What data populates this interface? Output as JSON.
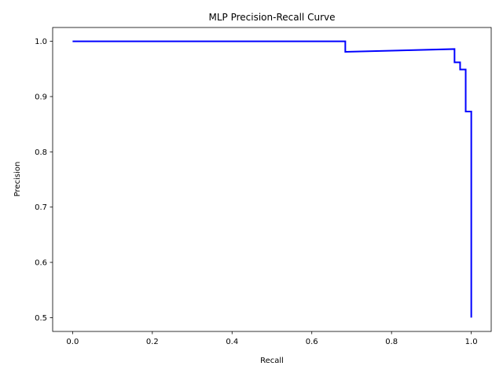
{
  "chart_data": {
    "type": "line",
    "title": "MLP Precision-Recall Curve",
    "xlabel": "Recall",
    "ylabel": "Precision",
    "xlim": [
      -0.05,
      1.05
    ],
    "ylim": [
      0.475,
      1.025
    ],
    "xticks": [
      0.0,
      0.2,
      0.4,
      0.6,
      0.8,
      1.0
    ],
    "xtick_labels": [
      "0.0",
      "0.2",
      "0.4",
      "0.6",
      "0.8",
      "1.0"
    ],
    "yticks": [
      0.5,
      0.6,
      0.7,
      0.8,
      0.9,
      1.0
    ],
    "ytick_labels": [
      "0.5",
      "0.6",
      "0.7",
      "0.8",
      "0.9",
      "1.0"
    ],
    "grid": false,
    "series": [
      {
        "color": "#0000ff",
        "x": [
          0.0,
          0.684,
          0.684,
          0.958,
          0.958,
          0.972,
          0.972,
          0.986,
          0.986,
          1.0,
          1.0
        ],
        "y": [
          1.0,
          1.0,
          0.981,
          0.986,
          0.962,
          0.962,
          0.949,
          0.949,
          0.873,
          0.873,
          0.5
        ]
      }
    ]
  }
}
